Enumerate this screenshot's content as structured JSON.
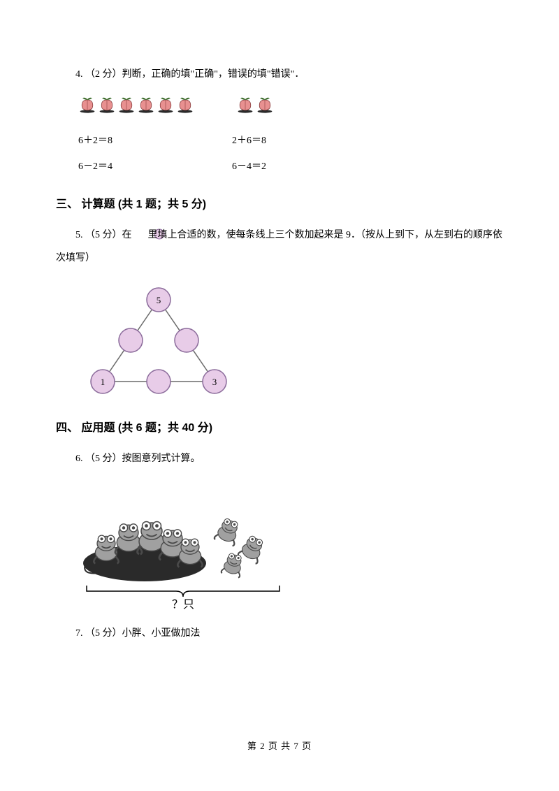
{
  "q4": {
    "text": "4. （2 分）判断，正确的填\"正确\"，错误的填\"错误\"．",
    "peach_color_fill": "#e89090",
    "peach_color_stroke": "#7a3030",
    "leaf_color": "#3a6b2a",
    "base_color": "#2a2a2a",
    "group1_count": 6,
    "group2_count": 2,
    "eq_a1": "6＋2＝8",
    "eq_a2": "2＋6＝8",
    "eq_b1": "6－2＝4",
    "eq_b2": "6－4＝2"
  },
  "section3": {
    "heading": "三、 计算题 (共 1 题；共 5 分)"
  },
  "q5": {
    "text_before": "5. （5 分）在 ",
    "text_after": " 里填上合适的数，使每条线上三个数加起来是 9．（按从上到下，从左到右的顺序依次填写）",
    "circle_fill": "#e8cce8",
    "circle_stroke": "#8a6a9a",
    "line_color": "#6a6a6a",
    "top_label": "5",
    "left_label": "1",
    "right_label": "3"
  },
  "section4": {
    "heading": "四、 应用题 (共 6 题；共 40 分)"
  },
  "q6": {
    "text": "6. （5 分）按图意列式计算。",
    "caption": "？只",
    "frog_fill": "#a0a0a0",
    "frog_dark": "#4a4a4a",
    "pad_fill": "#2a2a2a",
    "bracket_color": "#000000"
  },
  "q7": {
    "text": "7. （5 分）小胖、小亚做加法"
  },
  "footer": {
    "text": "第 2 页 共 7 页"
  }
}
